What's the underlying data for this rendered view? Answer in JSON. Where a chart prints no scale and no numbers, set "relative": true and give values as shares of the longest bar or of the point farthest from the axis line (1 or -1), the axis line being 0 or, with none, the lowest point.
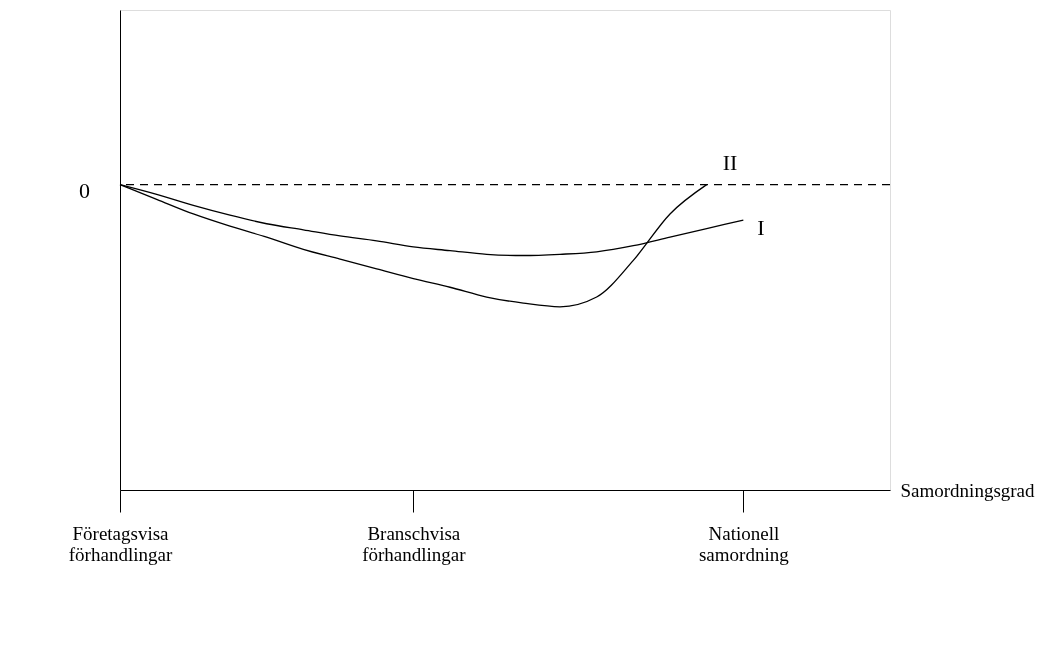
{
  "chart_data": {
    "type": "line",
    "relative": true,
    "xlabel": "Samordningsgrad",
    "categories": [
      "Företagsvisa förhandlingar",
      null,
      null,
      null,
      null,
      null,
      null,
      null,
      "Branschvisa förhandlingar",
      null,
      null,
      null,
      null,
      null,
      null,
      null,
      null,
      "Nationell samordning",
      null,
      null,
      null,
      null
    ],
    "series": [
      {
        "name": "I",
        "color": "#000000",
        "values": [
          0,
          -0.08,
          -0.17,
          -0.25,
          -0.32,
          -0.37,
          -0.42,
          -0.46,
          -0.51,
          -0.54,
          -0.57,
          -0.58,
          -0.57,
          -0.55,
          -0.5,
          -0.43,
          -0.36,
          -0.29,
          null,
          null,
          null,
          null
        ]
      },
      {
        "name": "II",
        "color": "#000000",
        "values": [
          0,
          -0.12,
          -0.24,
          -0.34,
          -0.43,
          -0.53,
          -0.61,
          -0.69,
          -0.77,
          -0.84,
          -0.92,
          -0.97,
          -1.0,
          -0.92,
          -0.62,
          -0.24,
          0,
          null,
          null,
          null,
          null,
          null
        ]
      }
    ],
    "ref_lines": [
      {
        "axis": "y",
        "value": 0,
        "label": "0",
        "color": "#000000",
        "line_style": "dashed"
      }
    ],
    "grid": false,
    "marker": "none",
    "line_style": "solid"
  }
}
